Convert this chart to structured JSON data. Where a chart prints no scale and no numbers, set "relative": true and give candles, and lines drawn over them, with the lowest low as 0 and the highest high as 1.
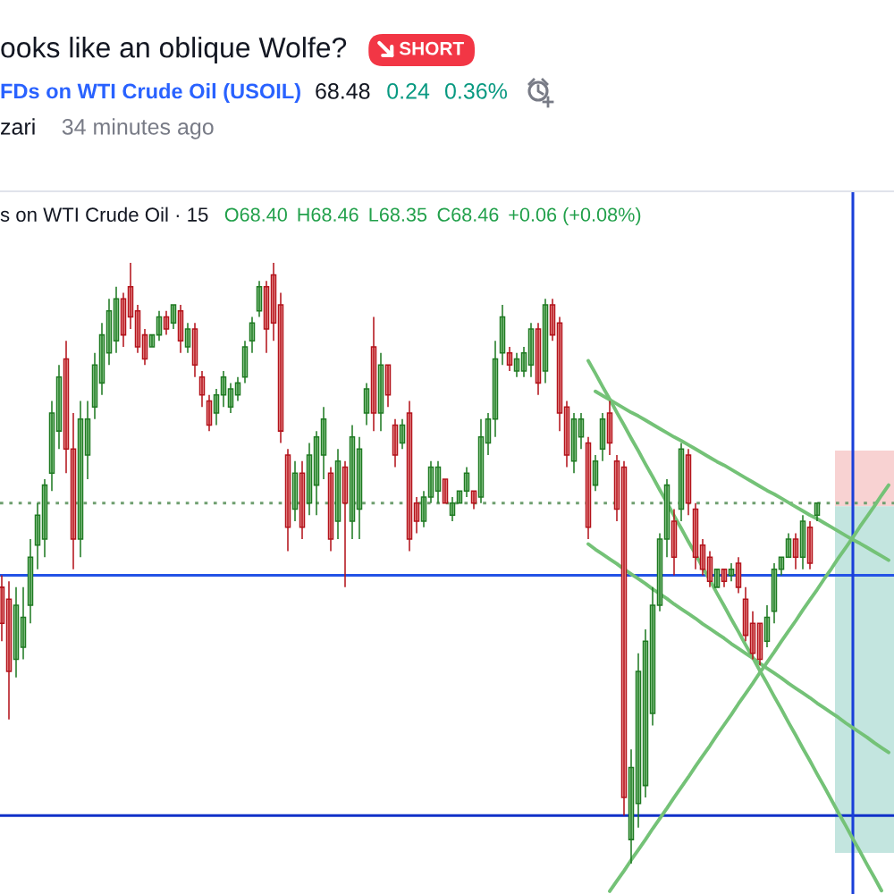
{
  "chart_data": {
    "type": "candlestick",
    "title": "ooks like an oblique Wolfe?",
    "subtitle": "FDs on WTI Crude Oil (USOIL)",
    "annotations": [
      "SHORT",
      "68.48",
      "0.24",
      "0.36%",
      "zari",
      "34 minutes ago",
      "s on WTI Crude Oil · 15",
      "O68.40",
      "H68.46",
      "L68.35",
      "C68.46",
      "+0.06 (+0.08%)"
    ],
    "relative": true,
    "categories": [
      null,
      null,
      null,
      null,
      null,
      null,
      null,
      null,
      null,
      null,
      null,
      null,
      null,
      null,
      null,
      null,
      null,
      null,
      null,
      null,
      null,
      null,
      null,
      null,
      null,
      null,
      null,
      null,
      null,
      null,
      null,
      null,
      null,
      null,
      null,
      null,
      null,
      null,
      null,
      null,
      null,
      null,
      null,
      null,
      null,
      null,
      null,
      null,
      null,
      null,
      null,
      null,
      null,
      null,
      null,
      null,
      null,
      null,
      null,
      null,
      null,
      null,
      null,
      null,
      null,
      null,
      null,
      null,
      null,
      null,
      null,
      null,
      null,
      null,
      null,
      null,
      null,
      null,
      null,
      null,
      null,
      null,
      null,
      null,
      null,
      null,
      null,
      null,
      null,
      null,
      null,
      null,
      null,
      null,
      null,
      null,
      null,
      null,
      null,
      null,
      null,
      null,
      null,
      null,
      null,
      null,
      null,
      null,
      null,
      null,
      null,
      null,
      null,
      null,
      null,
      null,
      null,
      null,
      null,
      null,
      null,
      null,
      null,
      null,
      null
    ],
    "ohlc": [
      [
        0.46,
        0.48,
        0.37,
        0.4
      ],
      [
        0.44,
        0.47,
        0.24,
        0.32
      ],
      [
        0.34,
        0.46,
        0.31,
        0.43
      ],
      [
        0.36,
        0.46,
        0.34,
        0.41
      ],
      [
        0.43,
        0.54,
        0.4,
        0.51
      ],
      [
        0.53,
        0.6,
        0.49,
        0.58
      ],
      [
        0.54,
        0.64,
        0.51,
        0.63
      ],
      [
        0.65,
        0.77,
        0.62,
        0.75
      ],
      [
        0.72,
        0.83,
        0.69,
        0.81
      ],
      [
        0.84,
        0.87,
        0.65,
        0.69
      ],
      [
        0.69,
        0.75,
        0.49,
        0.54
      ],
      [
        0.54,
        0.77,
        0.51,
        0.74
      ],
      [
        0.68,
        0.77,
        0.64,
        0.74
      ],
      [
        0.76,
        0.85,
        0.74,
        0.83
      ],
      [
        0.8,
        0.9,
        0.78,
        0.88
      ],
      [
        0.85,
        0.94,
        0.83,
        0.92
      ],
      [
        0.87,
        0.96,
        0.85,
        0.94
      ],
      [
        0.94,
        0.95,
        0.86,
        0.88
      ],
      [
        0.96,
        1.0,
        0.89,
        0.91
      ],
      [
        0.92,
        0.93,
        0.85,
        0.86
      ],
      [
        0.88,
        0.89,
        0.83,
        0.84
      ],
      [
        0.86,
        0.88,
        0.86,
        0.88
      ],
      [
        0.88,
        0.92,
        0.87,
        0.91
      ],
      [
        0.91,
        0.92,
        0.88,
        0.89
      ],
      [
        0.9,
        0.93,
        0.89,
        0.93
      ],
      [
        0.92,
        0.93,
        0.85,
        0.87
      ],
      [
        0.86,
        0.9,
        0.85,
        0.89
      ],
      [
        0.89,
        0.9,
        0.81,
        0.83
      ],
      [
        0.81,
        0.82,
        0.76,
        0.78
      ],
      [
        0.77,
        0.78,
        0.72,
        0.73
      ],
      [
        0.75,
        0.79,
        0.73,
        0.78
      ],
      [
        0.78,
        0.82,
        0.76,
        0.81
      ],
      [
        0.76,
        0.8,
        0.75,
        0.79
      ],
      [
        0.78,
        0.81,
        0.77,
        0.8
      ],
      [
        0.81,
        0.87,
        0.8,
        0.86
      ],
      [
        0.87,
        0.91,
        0.85,
        0.9
      ],
      [
        0.92,
        0.97,
        0.91,
        0.96
      ],
      [
        0.96,
        0.97,
        0.85,
        0.89
      ],
      [
        0.98,
        1.0,
        0.87,
        0.9
      ],
      [
        0.93,
        0.95,
        0.7,
        0.72
      ],
      [
        0.68,
        0.69,
        0.52,
        0.56
      ],
      [
        0.59,
        0.67,
        0.57,
        0.65
      ],
      [
        0.65,
        0.67,
        0.54,
        0.56
      ],
      [
        0.6,
        0.7,
        0.58,
        0.68
      ],
      [
        0.63,
        0.72,
        0.58,
        0.71
      ],
      [
        0.68,
        0.76,
        0.64,
        0.74
      ],
      [
        0.65,
        0.66,
        0.52,
        0.54
      ],
      [
        0.57,
        0.69,
        0.54,
        0.67
      ],
      [
        0.66,
        0.67,
        0.46,
        0.6
      ],
      [
        0.57,
        0.73,
        0.54,
        0.71
      ],
      [
        0.59,
        0.71,
        0.54,
        0.69
      ],
      [
        0.75,
        0.8,
        0.73,
        0.79
      ],
      [
        0.86,
        0.91,
        0.72,
        0.75
      ],
      [
        0.75,
        0.85,
        0.72,
        0.83
      ],
      [
        0.83,
        0.83,
        0.76,
        0.78
      ],
      [
        0.73,
        0.74,
        0.66,
        0.68
      ],
      [
        0.7,
        0.74,
        0.69,
        0.73
      ],
      [
        0.75,
        0.77,
        0.52,
        0.54
      ],
      [
        0.6,
        0.61,
        0.55,
        0.57
      ],
      [
        0.57,
        0.62,
        0.56,
        0.61
      ],
      [
        0.61,
        0.67,
        0.6,
        0.66
      ],
      [
        0.62,
        0.67,
        0.6,
        0.66
      ],
      [
        0.64,
        0.64,
        0.6,
        0.6
      ],
      [
        0.58,
        0.61,
        0.57,
        0.6
      ],
      [
        0.6,
        0.62,
        0.6,
        0.62
      ],
      [
        0.62,
        0.66,
        0.61,
        0.65
      ],
      [
        0.62,
        0.62,
        0.59,
        0.6
      ],
      [
        0.61,
        0.74,
        0.6,
        0.71
      ],
      [
        0.7,
        0.75,
        0.68,
        0.74
      ],
      [
        0.74,
        0.87,
        0.71,
        0.84
      ],
      [
        0.85,
        0.93,
        0.83,
        0.91
      ],
      [
        0.85,
        0.86,
        0.82,
        0.83
      ],
      [
        0.82,
        0.85,
        0.81,
        0.84
      ],
      [
        0.82,
        0.86,
        0.81,
        0.85
      ],
      [
        0.83,
        0.9,
        0.81,
        0.89
      ],
      [
        0.89,
        0.9,
        0.78,
        0.8
      ],
      [
        0.82,
        0.94,
        0.8,
        0.93
      ],
      [
        0.93,
        0.94,
        0.87,
        0.88
      ],
      [
        0.9,
        0.91,
        0.72,
        0.75
      ],
      [
        0.76,
        0.77,
        0.66,
        0.68
      ],
      [
        0.67,
        0.75,
        0.65,
        0.74
      ],
      [
        0.71,
        0.75,
        0.69,
        0.74
      ],
      [
        0.7,
        0.71,
        0.54,
        0.56
      ],
      [
        0.63,
        0.68,
        0.62,
        0.67
      ],
      [
        0.69,
        0.75,
        0.67,
        0.74
      ],
      [
        0.75,
        0.77,
        0.68,
        0.7
      ],
      [
        0.67,
        0.68,
        0.57,
        0.59
      ],
      [
        0.66,
        0.67,
        0.08,
        0.11
      ],
      [
        0.04,
        0.19,
        0.0,
        0.16
      ],
      [
        0.1,
        0.35,
        0.06,
        0.32
      ],
      [
        0.13,
        0.39,
        0.11,
        0.37
      ],
      [
        0.25,
        0.46,
        0.23,
        0.43
      ],
      [
        0.43,
        0.55,
        0.42,
        0.54
      ],
      [
        0.54,
        0.64,
        0.51,
        0.63
      ],
      [
        0.57,
        0.59,
        0.48,
        0.51
      ],
      [
        0.59,
        0.7,
        0.57,
        0.69
      ],
      [
        0.68,
        0.69,
        0.58,
        0.6
      ],
      [
        0.59,
        0.6,
        0.49,
        0.51
      ],
      [
        0.53,
        0.54,
        0.48,
        0.49
      ],
      [
        0.51,
        0.52,
        0.46,
        0.47
      ],
      [
        0.46,
        0.49,
        0.46,
        0.49
      ],
      [
        0.49,
        0.49,
        0.46,
        0.47
      ],
      [
        0.48,
        0.5,
        0.47,
        0.49
      ],
      [
        0.5,
        0.51,
        0.45,
        0.46
      ],
      [
        0.44,
        0.46,
        0.37,
        0.38
      ],
      [
        0.4,
        0.42,
        0.34,
        0.35
      ],
      [
        0.4,
        0.4,
        0.33,
        0.34
      ],
      [
        0.37,
        0.43,
        0.36,
        0.41
      ],
      [
        0.42,
        0.5,
        0.4,
        0.49
      ],
      [
        0.49,
        0.51,
        0.48,
        0.51
      ],
      [
        0.51,
        0.55,
        0.51,
        0.54
      ],
      [
        0.54,
        0.55,
        0.49,
        0.51
      ],
      [
        0.51,
        0.58,
        0.49,
        0.57
      ],
      [
        0.56,
        0.57,
        0.49,
        0.5
      ],
      [
        0.58,
        0.6,
        0.57,
        0.6
      ],
      null,
      null,
      null,
      null,
      null,
      null,
      null,
      null,
      null,
      null
    ],
    "series": [
      {
        "type": "line",
        "color": "#74c277",
        "values": [
          null,
          null,
          null,
          null,
          null,
          null,
          null,
          null,
          null,
          null,
          null,
          null,
          null,
          null,
          null,
          null,
          null,
          null,
          null,
          null,
          null,
          null,
          null,
          null,
          null,
          null,
          null,
          null,
          null,
          null,
          null,
          null,
          null,
          null,
          null,
          null,
          null,
          null,
          null,
          null,
          null,
          null,
          null,
          null,
          null,
          null,
          null,
          null,
          null,
          null,
          null,
          null,
          null,
          null,
          null,
          null,
          null,
          null,
          null,
          null,
          null,
          null,
          null,
          null,
          null,
          null,
          null,
          null,
          null,
          null,
          null,
          null,
          null,
          null,
          null,
          null,
          null,
          null,
          null,
          null,
          null,
          null,
          0.837,
          0.816,
          0.794,
          0.773,
          0.751,
          0.73,
          0.708,
          0.687,
          0.665,
          0.644,
          0.622,
          0.601,
          0.579,
          0.558,
          0.536,
          0.515,
          0.493,
          0.472,
          0.45,
          0.429,
          0.407,
          0.386,
          0.364,
          0.343,
          0.321,
          0.3,
          0.278,
          0.257,
          0.235,
          0.214,
          0.192,
          0.171,
          0.149,
          0.128,
          0.106,
          0.084,
          0.063,
          0.041,
          0.02,
          -0.002,
          -0.023,
          -0.045,
          null
        ]
      },
      {
        "type": "line",
        "color": "#74c277",
        "values": [
          null,
          null,
          null,
          null,
          null,
          null,
          null,
          null,
          null,
          null,
          null,
          null,
          null,
          null,
          null,
          null,
          null,
          null,
          null,
          null,
          null,
          null,
          null,
          null,
          null,
          null,
          null,
          null,
          null,
          null,
          null,
          null,
          null,
          null,
          null,
          null,
          null,
          null,
          null,
          null,
          null,
          null,
          null,
          null,
          null,
          null,
          null,
          null,
          null,
          null,
          null,
          null,
          null,
          null,
          null,
          null,
          null,
          null,
          null,
          null,
          null,
          null,
          null,
          null,
          null,
          null,
          null,
          null,
          null,
          null,
          null,
          null,
          null,
          null,
          null,
          null,
          null,
          null,
          null,
          null,
          null,
          null,
          null,
          0.786,
          0.779,
          0.772,
          0.765,
          0.758,
          0.751,
          0.745,
          0.738,
          0.731,
          0.724,
          0.717,
          0.71,
          0.704,
          0.697,
          0.69,
          0.683,
          0.676,
          0.669,
          0.663,
          0.656,
          0.649,
          0.642,
          0.635,
          0.628,
          0.621,
          0.615,
          0.608,
          0.601,
          0.594,
          0.587,
          0.58,
          0.574,
          0.567,
          0.56,
          0.553,
          0.546,
          0.539,
          0.533,
          0.526,
          0.519,
          0.512,
          0.505
        ]
      },
      {
        "type": "line",
        "color": "#74c277",
        "values": [
          null,
          null,
          null,
          null,
          null,
          null,
          null,
          null,
          null,
          null,
          null,
          null,
          null,
          null,
          null,
          null,
          null,
          null,
          null,
          null,
          null,
          null,
          null,
          null,
          null,
          null,
          null,
          null,
          null,
          null,
          null,
          null,
          null,
          null,
          null,
          null,
          null,
          null,
          null,
          null,
          null,
          null,
          null,
          null,
          null,
          null,
          null,
          null,
          null,
          null,
          null,
          null,
          null,
          null,
          null,
          null,
          null,
          null,
          null,
          null,
          null,
          null,
          null,
          null,
          null,
          null,
          null,
          null,
          null,
          null,
          null,
          null,
          null,
          null,
          null,
          null,
          null,
          null,
          null,
          null,
          null,
          null,
          0.532,
          0.523,
          0.515,
          0.507,
          0.499,
          0.49,
          0.482,
          0.474,
          0.466,
          0.457,
          0.449,
          0.441,
          0.432,
          0.424,
          0.416,
          0.408,
          0.399,
          0.391,
          0.383,
          0.375,
          0.366,
          0.358,
          0.35,
          0.342,
          0.333,
          0.325,
          0.317,
          0.309,
          0.3,
          0.292,
          0.284,
          0.276,
          0.267,
          0.259,
          0.251,
          0.243,
          0.234,
          0.226,
          0.218,
          0.21,
          0.201,
          0.193,
          0.185
        ]
      },
      {
        "type": "line",
        "color": "#74c277",
        "values": [
          null,
          null,
          null,
          null,
          null,
          null,
          null,
          null,
          null,
          null,
          null,
          null,
          null,
          null,
          null,
          null,
          null,
          null,
          null,
          null,
          null,
          null,
          null,
          null,
          null,
          null,
          null,
          null,
          null,
          null,
          null,
          null,
          null,
          null,
          null,
          null,
          null,
          null,
          null,
          null,
          null,
          null,
          null,
          null,
          null,
          null,
          null,
          null,
          null,
          null,
          null,
          null,
          null,
          null,
          null,
          null,
          null,
          null,
          null,
          null,
          null,
          null,
          null,
          null,
          null,
          null,
          null,
          null,
          null,
          null,
          null,
          null,
          null,
          null,
          null,
          null,
          null,
          null,
          null,
          null,
          null,
          null,
          null,
          null,
          null,
          -0.046,
          -0.029,
          -0.012,
          0.006,
          0.023,
          0.04,
          0.058,
          0.075,
          0.092,
          0.11,
          0.127,
          0.144,
          0.162,
          0.179,
          0.196,
          0.214,
          0.231,
          0.248,
          0.266,
          0.283,
          0.3,
          0.318,
          0.335,
          0.352,
          0.37,
          0.387,
          0.404,
          0.422,
          0.439,
          0.456,
          0.474,
          0.491,
          0.509,
          0.526,
          0.543,
          0.561,
          0.578,
          0.595,
          0.613,
          0.63
        ]
      }
    ],
    "ref_lines": [
      {
        "axis": "y",
        "value": 0.48,
        "color": "#2453e6"
      },
      {
        "axis": "y",
        "value": 0.08,
        "color": "#1030c8"
      },
      {
        "axis": "y",
        "value": 0.6,
        "color": "#6f9f70",
        "line_style": "dotted"
      }
    ]
  }
}
